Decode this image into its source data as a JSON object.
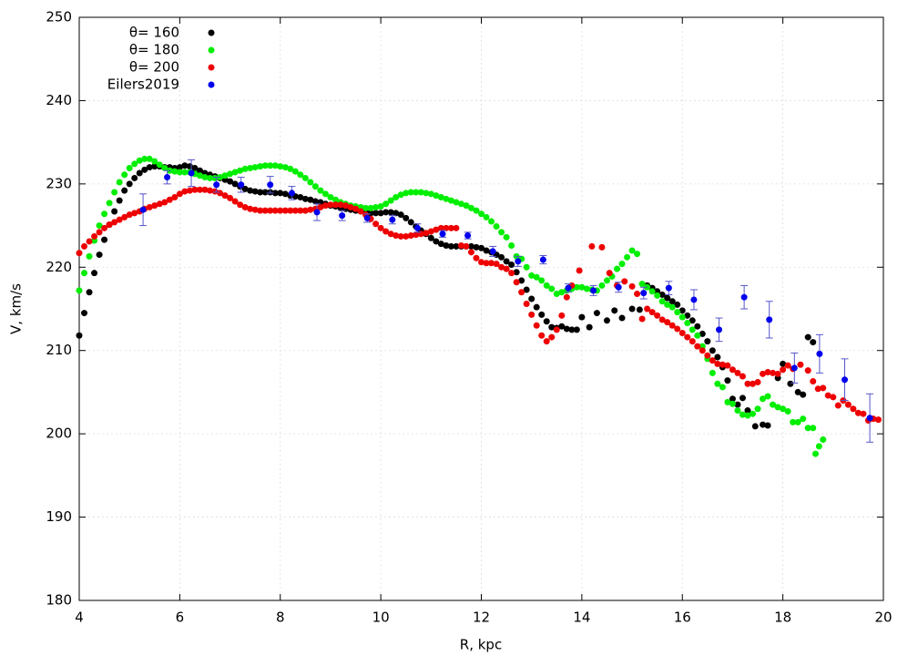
{
  "chart_data": {
    "type": "scatter",
    "xlabel": "R, kpc",
    "ylabel": "V, km/s",
    "xlim": [
      4,
      20
    ],
    "ylim": [
      180,
      250
    ],
    "xticks": [
      4,
      6,
      8,
      10,
      12,
      14,
      16,
      18,
      20
    ],
    "yticks": [
      180,
      190,
      200,
      210,
      220,
      230,
      240,
      250
    ],
    "grid": true,
    "legend": "top-left",
    "series": [
      {
        "name": "θ= 160",
        "color": "#000000",
        "x": [
          4.0,
          4.1,
          4.2,
          4.3,
          4.4,
          4.5,
          4.6,
          4.7,
          4.8,
          4.9,
          5.0,
          5.1,
          5.2,
          5.3,
          5.4,
          5.5,
          5.6,
          5.7,
          5.8,
          5.9,
          6.0,
          6.1,
          6.2,
          6.3,
          6.4,
          6.5,
          6.6,
          6.7,
          6.8,
          6.9,
          7.0,
          7.1,
          7.2,
          7.3,
          7.4,
          7.5,
          7.6,
          7.7,
          7.8,
          7.9,
          8.0,
          8.1,
          8.2,
          8.3,
          8.4,
          8.5,
          8.6,
          8.7,
          8.8,
          8.9,
          9.0,
          9.1,
          9.2,
          9.3,
          9.4,
          9.5,
          9.6,
          9.7,
          9.8,
          9.9,
          10.0,
          10.1,
          10.2,
          10.3,
          10.4,
          10.5,
          10.6,
          10.7,
          10.8,
          10.9,
          11.0,
          11.1,
          11.2,
          11.3,
          11.4,
          11.5,
          11.6,
          11.7,
          11.8,
          11.9,
          12.0,
          12.1,
          12.2,
          12.3,
          12.4,
          12.5,
          12.6,
          12.7,
          12.8,
          12.9,
          13.0,
          13.1,
          13.2,
          13.3,
          13.4,
          13.5,
          13.6,
          13.7,
          13.8,
          13.9,
          14.0,
          14.15,
          14.3,
          14.5,
          14.65,
          14.8,
          15.0,
          15.15,
          15.3,
          15.4,
          15.5,
          15.6,
          15.7,
          15.8,
          15.9,
          16.0,
          16.1,
          16.2,
          16.3,
          16.4,
          16.5,
          16.6,
          16.7,
          16.8,
          16.9,
          17.0,
          17.1,
          17.2,
          17.3,
          17.45,
          17.6,
          17.7,
          17.9,
          18.0,
          18.15,
          18.3,
          18.4,
          18.5,
          18.6
        ],
        "values": [
          211.8,
          214.5,
          217,
          219.3,
          221.5,
          223.3,
          225.1,
          226.7,
          228.0,
          229.2,
          230.0,
          230.7,
          231.3,
          231.7,
          232.0,
          232.1,
          232.1,
          232.0,
          232.0,
          231.9,
          232.0,
          232.2,
          232.1,
          231.9,
          231.6,
          231.3,
          231.1,
          230.9,
          230.7,
          230.5,
          230.3,
          230.0,
          229.7,
          229.4,
          229.2,
          229.1,
          229.0,
          229.0,
          229.0,
          228.9,
          228.9,
          228.8,
          228.6,
          228.5,
          228.4,
          228.2,
          228.1,
          227.9,
          227.8,
          227.6,
          227.4,
          227.3,
          227.1,
          227.0,
          226.9,
          226.8,
          226.7,
          226.6,
          226.5,
          226.5,
          226.5,
          226.6,
          226.6,
          226.5,
          226.3,
          225.9,
          225.4,
          224.9,
          224.4,
          224.0,
          223.5,
          223.1,
          222.8,
          222.6,
          222.5,
          222.5,
          222.5,
          222.5,
          222.5,
          222.4,
          222.3,
          222.0,
          221.8,
          221.5,
          221.2,
          220.7,
          220.3,
          219.4,
          218.4,
          217.3,
          216.2,
          215.2,
          214.3,
          213.5,
          212.8,
          212.7,
          212.9,
          212.6,
          212.5,
          212.5,
          214.0,
          212.8,
          214.5,
          213.6,
          214.8,
          213.9,
          215.0,
          214.9,
          217.8,
          217.5,
          217.1,
          216.7,
          216.3,
          215.9,
          215.5,
          214.8,
          214.2,
          213.6,
          212.9,
          212.0,
          211.1,
          210.0,
          209.2,
          208.0,
          206.4,
          204.2,
          203.5,
          204.3,
          202.8,
          200.9,
          201.1,
          201.0,
          206.7,
          208.4,
          206.0,
          205.0,
          204.7,
          211.6,
          211.0
        ]
      },
      {
        "name": "θ= 180",
        "color": "#00ee00",
        "x": [
          4.0,
          4.1,
          4.2,
          4.3,
          4.4,
          4.5,
          4.6,
          4.7,
          4.8,
          4.9,
          5.0,
          5.1,
          5.2,
          5.3,
          5.4,
          5.5,
          5.6,
          5.7,
          5.8,
          5.9,
          6.0,
          6.1,
          6.2,
          6.3,
          6.4,
          6.5,
          6.6,
          6.7,
          6.8,
          6.9,
          7.0,
          7.1,
          7.2,
          7.3,
          7.4,
          7.5,
          7.6,
          7.7,
          7.8,
          7.9,
          8.0,
          8.1,
          8.2,
          8.3,
          8.4,
          8.5,
          8.6,
          8.7,
          8.8,
          8.9,
          9.0,
          9.1,
          9.2,
          9.3,
          9.4,
          9.5,
          9.6,
          9.7,
          9.8,
          9.9,
          10.0,
          10.1,
          10.2,
          10.3,
          10.4,
          10.5,
          10.6,
          10.7,
          10.8,
          10.9,
          11.0,
          11.1,
          11.2,
          11.3,
          11.4,
          11.5,
          11.6,
          11.7,
          11.8,
          11.9,
          12.0,
          12.1,
          12.2,
          12.3,
          12.4,
          12.5,
          12.6,
          12.7,
          12.8,
          12.9,
          13.0,
          13.1,
          13.2,
          13.3,
          13.4,
          13.5,
          13.6,
          13.7,
          13.8,
          13.9,
          14.0,
          14.1,
          14.2,
          14.3,
          14.4,
          14.5,
          14.6,
          14.7,
          14.8,
          14.9,
          15.0,
          15.1,
          15.2,
          15.3,
          15.4,
          15.5,
          15.6,
          15.7,
          15.8,
          15.9,
          16.0,
          16.1,
          16.2,
          16.3,
          16.4,
          16.5,
          16.6,
          16.7,
          16.8,
          16.9,
          17.0,
          17.1,
          17.2,
          17.3,
          17.4,
          17.5,
          17.6,
          17.7,
          17.8,
          17.9,
          18.0,
          18.1,
          18.2,
          18.3,
          18.4,
          18.5,
          18.6,
          18.65,
          18.72,
          18.8
        ],
        "values": [
          217.2,
          219.3,
          221.3,
          223.2,
          225.0,
          226.4,
          227.7,
          229.0,
          230.2,
          231.1,
          231.9,
          232.4,
          232.8,
          233.0,
          233.0,
          232.7,
          232.3,
          231.9,
          231.6,
          231.5,
          231.4,
          231.4,
          231.4,
          231.2,
          231.0,
          230.8,
          230.7,
          230.7,
          230.8,
          231.0,
          231.2,
          231.4,
          231.6,
          231.8,
          231.9,
          232.0,
          232.1,
          232.2,
          232.2,
          232.2,
          232.1,
          232.0,
          231.8,
          231.5,
          231.1,
          230.7,
          230.2,
          229.7,
          229.2,
          228.8,
          228.4,
          228.1,
          227.8,
          227.6,
          227.4,
          227.3,
          227.2,
          227.1,
          227.1,
          227.2,
          227.3,
          227.6,
          228.0,
          228.4,
          228.7,
          228.9,
          229.0,
          229.0,
          229.0,
          228.9,
          228.8,
          228.6,
          228.4,
          228.2,
          228.0,
          227.8,
          227.6,
          227.4,
          227.1,
          226.8,
          226.4,
          226.0,
          225.5,
          224.9,
          224.2,
          223.6,
          222.6,
          221.3,
          221.0,
          220.0,
          219.0,
          218.8,
          218.4,
          217.8,
          217.4,
          216.8,
          217.0,
          217.2,
          217.4,
          217.6,
          217.6,
          217.4,
          217.3,
          217.2,
          217.8,
          218.4,
          218.9,
          219.8,
          220.4,
          221.2,
          222.0,
          221.6,
          218.0,
          217.6,
          217.1,
          216.6,
          215.9,
          215.5,
          215.2,
          214.6,
          214.0,
          213.3,
          212.5,
          211.8,
          210.5,
          209.0,
          207.3,
          206.0,
          205.6,
          203.8,
          203.6,
          202.8,
          202.3,
          202.2,
          202.4,
          203.0,
          204.2,
          204.5,
          203.5,
          203.2,
          203.0,
          202.7,
          201.4,
          201.4,
          201.8,
          200.7,
          200.7,
          197.6,
          198.5,
          199.3
        ]
      },
      {
        "name": "θ= 200",
        "color": "#ee0000",
        "x": [
          4.0,
          4.1,
          4.2,
          4.3,
          4.4,
          4.5,
          4.6,
          4.7,
          4.8,
          4.9,
          5.0,
          5.1,
          5.2,
          5.3,
          5.4,
          5.5,
          5.6,
          5.7,
          5.8,
          5.9,
          6.0,
          6.1,
          6.2,
          6.3,
          6.4,
          6.5,
          6.6,
          6.7,
          6.8,
          6.9,
          7.0,
          7.1,
          7.2,
          7.3,
          7.4,
          7.5,
          7.6,
          7.7,
          7.8,
          7.9,
          8.0,
          8.1,
          8.2,
          8.3,
          8.4,
          8.5,
          8.6,
          8.7,
          8.8,
          8.9,
          9.0,
          9.1,
          9.2,
          9.3,
          9.4,
          9.5,
          9.6,
          9.7,
          9.8,
          9.9,
          10.0,
          10.1,
          10.2,
          10.3,
          10.4,
          10.5,
          10.6,
          10.7,
          10.8,
          10.9,
          11.0,
          11.1,
          11.2,
          11.3,
          11.4,
          11.5,
          11.6,
          11.7,
          11.8,
          11.9,
          12.0,
          12.1,
          12.2,
          12.3,
          12.4,
          12.5,
          12.6,
          12.7,
          12.8,
          12.9,
          13.0,
          13.1,
          13.2,
          13.3,
          13.4,
          13.5,
          13.6,
          13.7,
          13.8,
          13.95,
          14.2,
          14.4,
          14.55,
          14.7,
          14.85,
          15.0,
          15.1,
          15.2,
          15.3,
          15.4,
          15.5,
          15.6,
          15.7,
          15.8,
          15.9,
          16.0,
          16.1,
          16.2,
          16.3,
          16.4,
          16.5,
          16.6,
          16.7,
          16.8,
          16.9,
          17.0,
          17.1,
          17.2,
          17.3,
          17.4,
          17.5,
          17.6,
          17.7,
          17.8,
          17.9,
          18.0,
          18.1,
          18.2,
          18.35,
          18.5,
          18.6,
          18.7,
          18.8,
          18.9,
          19.0,
          19.1,
          19.2,
          19.3,
          19.4,
          19.5,
          19.6,
          19.7,
          19.8,
          19.9
        ],
        "values": [
          221.7,
          222.5,
          223.1,
          223.7,
          224.2,
          224.7,
          225.1,
          225.4,
          225.7,
          226.0,
          226.3,
          226.5,
          226.7,
          227.0,
          227.2,
          227.4,
          227.6,
          227.8,
          228.1,
          228.4,
          228.8,
          229.1,
          229.2,
          229.3,
          229.3,
          229.3,
          229.2,
          229.1,
          228.9,
          228.6,
          228.3,
          227.9,
          227.5,
          227.2,
          227.0,
          226.9,
          226.8,
          226.8,
          226.8,
          226.8,
          226.8,
          226.8,
          226.8,
          226.8,
          226.8,
          226.8,
          226.9,
          227.0,
          227.2,
          227.4,
          227.5,
          227.5,
          227.5,
          227.4,
          227.2,
          227.0,
          226.7,
          226.3,
          225.8,
          225.2,
          224.7,
          224.3,
          224.0,
          223.8,
          223.7,
          223.7,
          223.8,
          223.9,
          224.0,
          224.1,
          224.3,
          224.5,
          224.7,
          224.7,
          224.7,
          224.7,
          222.6,
          222.5,
          221.8,
          221.1,
          220.6,
          220.5,
          220.5,
          220.4,
          220.0,
          219.8,
          219.3,
          218.2,
          217.0,
          215.6,
          214.3,
          213.0,
          211.8,
          211.1,
          211.6,
          212.5,
          214.2,
          216.4,
          217.8,
          219.6,
          222.5,
          222.4,
          219.3,
          217.8,
          218.3,
          217.7,
          216.8,
          213.8,
          215.0,
          214.6,
          214.2,
          213.7,
          213.4,
          213.0,
          212.6,
          212.1,
          211.6,
          211.1,
          210.5,
          210.0,
          209.4,
          208.8,
          208.4,
          208.3,
          208.2,
          207.7,
          207.3,
          206.9,
          206.0,
          206.0,
          206.2,
          207.2,
          207.4,
          207.3,
          207.2,
          207.7,
          208.2,
          207.8,
          208.3,
          207.6,
          206.3,
          205.4,
          205.5,
          204.6,
          204.4,
          203.4,
          204.0,
          203.5,
          203.0,
          202.5,
          202.4,
          201.6,
          201.8,
          201.7
        ]
      },
      {
        "name": "Eilers2019",
        "color": "#0000ee",
        "error_color": "#5555cc",
        "x": [
          5.27,
          5.75,
          6.23,
          6.73,
          7.22,
          7.8,
          8.23,
          8.73,
          9.23,
          9.73,
          10.23,
          10.73,
          11.23,
          11.73,
          12.23,
          12.73,
          13.23,
          13.73,
          14.23,
          14.73,
          15.23,
          15.73,
          16.23,
          16.73,
          17.23,
          17.73,
          18.23,
          18.73,
          19.23,
          19.73
        ],
        "values": [
          226.9,
          230.8,
          231.3,
          229.9,
          229.9,
          229.9,
          228.9,
          226.6,
          226.2,
          225.9,
          225.7,
          224.7,
          224.0,
          223.8,
          221.9,
          220.7,
          220.9,
          217.5,
          217.2,
          217.6,
          216.9,
          217.5,
          216.1,
          212.5,
          216.4,
          213.7,
          207.9,
          209.6,
          206.5,
          201.9
        ],
        "errors": [
          1.9,
          0.8,
          1.6,
          0.9,
          0.9,
          1.0,
          0.8,
          1.0,
          0.6,
          0.5,
          0.5,
          0.5,
          0.4,
          0.4,
          0.6,
          0.6,
          0.5,
          0.5,
          0.6,
          0.6,
          0.7,
          0.8,
          1.2,
          1.4,
          1.4,
          2.2,
          1.8,
          2.3,
          2.5,
          2.9
        ]
      }
    ]
  }
}
